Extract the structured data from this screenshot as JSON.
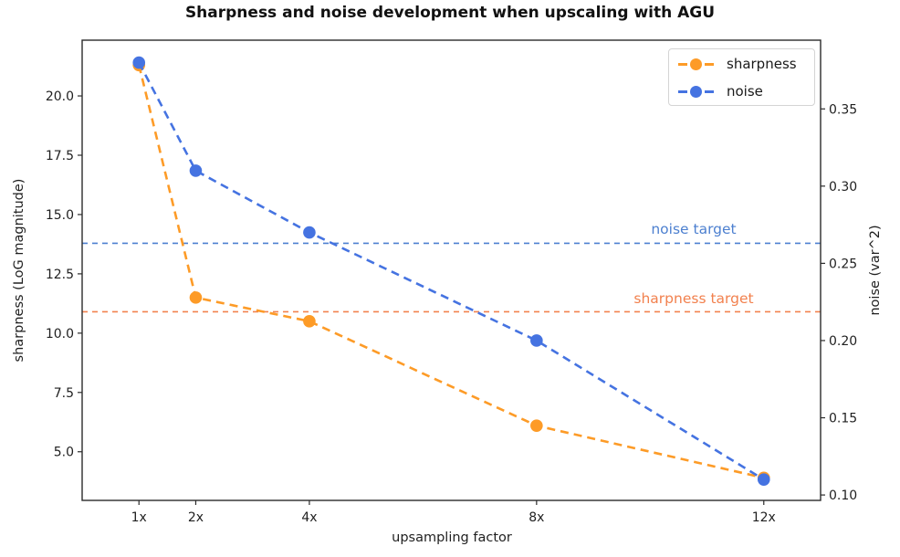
{
  "chart_data": {
    "type": "line",
    "title": "Sharpness and noise development when upscaling with AGU",
    "xlabel": "upsampling factor",
    "ylabel_left": "sharpness (LoG magnitude)",
    "ylabel_right": "noise (var^2)",
    "grid": false,
    "legend_position": "upper right",
    "x": [
      1,
      2,
      4,
      8,
      12
    ],
    "x_tick_labels": [
      "1x",
      "2x",
      "4x",
      "8x",
      "12x"
    ],
    "xlim": [
      0,
      13
    ],
    "ylim_left": [
      2.95,
      22.35
    ],
    "ylim_right": [
      0.0965,
      0.3945
    ],
    "y_ticks_left": {
      "values": [
        5.0,
        7.5,
        10.0,
        12.5,
        15.0,
        17.5,
        20.0
      ],
      "labels": [
        "5.0",
        "7.5",
        "10.0",
        "12.5",
        "15.0",
        "17.5",
        "20.0"
      ]
    },
    "y_ticks_right": {
      "values": [
        0.1,
        0.15,
        0.2,
        0.25,
        0.3,
        0.35
      ],
      "labels": [
        "0.10",
        "0.15",
        "0.20",
        "0.25",
        "0.30",
        "0.35"
      ]
    },
    "series": [
      {
        "name": "sharpness",
        "axis": "left",
        "color": "#fd9b27",
        "linestyle": "dashed",
        "marker": "circle",
        "values": [
          21.3,
          11.5,
          10.5,
          6.1,
          3.9
        ]
      },
      {
        "name": "noise",
        "axis": "right",
        "color": "#4573e1",
        "linestyle": "dashed",
        "marker": "circle",
        "values": [
          0.38,
          0.31,
          0.27,
          0.2,
          0.11
        ]
      }
    ],
    "targets": [
      {
        "label": "sharpness target",
        "axis": "left",
        "value": 10.9,
        "color": "#f2814e"
      },
      {
        "label": "noise target",
        "axis": "right",
        "value": 0.263,
        "color": "#4d80d0"
      }
    ]
  }
}
